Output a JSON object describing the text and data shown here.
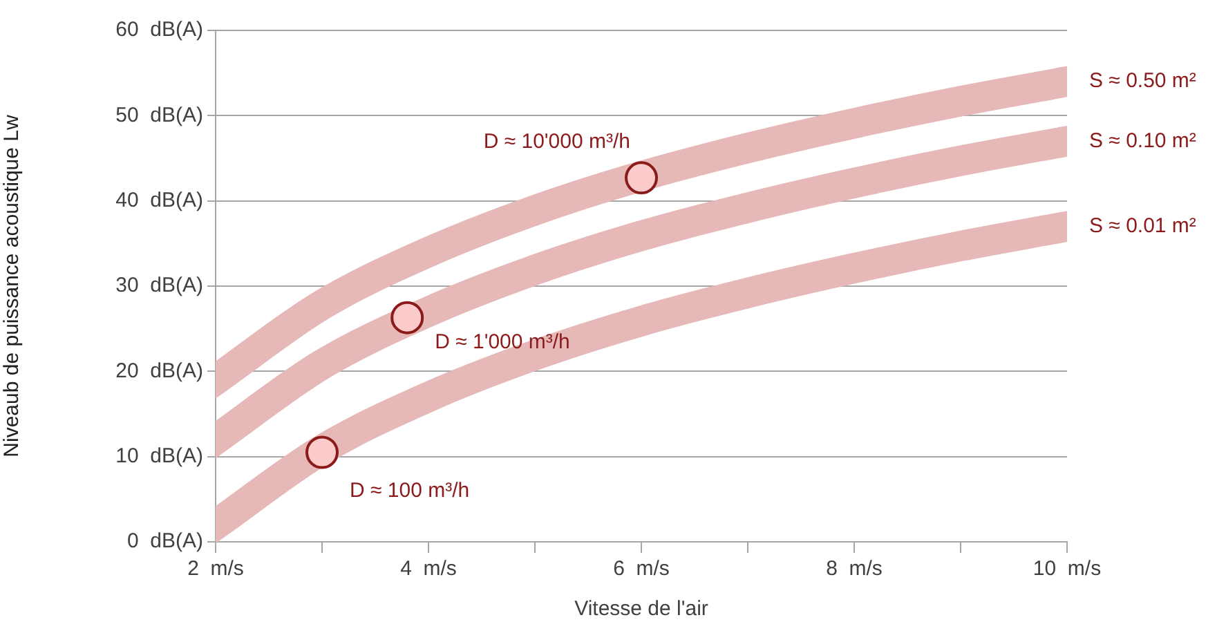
{
  "chart_data": {
    "type": "line",
    "xlabel": "Vitesse de l'air",
    "ylabel": "Niveaub de puissance acoustique Lw",
    "x": [
      2,
      3,
      4,
      5,
      6,
      7,
      8,
      9,
      10
    ],
    "series": [
      {
        "name": "S ≈ 0.50 m²",
        "color": "#e6b8b7",
        "values": [
          19,
          27.8,
          34,
          38.9,
          42.9,
          46.2,
          49.1,
          51.7,
          54
        ]
      },
      {
        "name": "S ≈ 0.10 m²",
        "color": "#e6b8b7",
        "values": [
          12,
          20.8,
          27,
          31.9,
          35.9,
          39.2,
          42.1,
          44.7,
          47
        ]
      },
      {
        "name": "S ≈ 0.01 m²",
        "color": "#e6b8b7",
        "values": [
          2,
          10.8,
          17,
          21.9,
          25.9,
          29.2,
          32.1,
          34.7,
          37
        ]
      },
      {
        "type": "scatter",
        "marker": "circle",
        "color": "#fbcaca",
        "x": [
          3,
          3.8,
          6
        ],
        "values": [
          10.5,
          26.3,
          42.7
        ]
      }
    ],
    "xlim": [
      2,
      10
    ],
    "xticks": [
      {
        "value": 2,
        "label": "2  m/s"
      },
      {
        "value": 3,
        "label": null
      },
      {
        "value": 4,
        "label": "4  m/s"
      },
      {
        "value": 5,
        "label": null
      },
      {
        "value": 6,
        "label": "6  m/s"
      },
      {
        "value": 7,
        "label": null
      },
      {
        "value": 8,
        "label": "8  m/s"
      },
      {
        "value": 9,
        "label": null
      },
      {
        "value": 10,
        "label": "10  m/s"
      }
    ],
    "ylim": [
      0,
      60
    ],
    "yticks": [
      {
        "value": 0,
        "label": "0  dB(A)"
      },
      {
        "value": 10,
        "label": "10  dB(A)"
      },
      {
        "value": 20,
        "label": "20  dB(A)"
      },
      {
        "value": 30,
        "label": "30  dB(A)"
      },
      {
        "value": 40,
        "label": "40  dB(A)"
      },
      {
        "value": 50,
        "label": "50  dB(A)"
      },
      {
        "value": 60,
        "label": "60  dB(A)"
      }
    ],
    "grid": "y",
    "legend": false,
    "line_style": "solid",
    "annotations": [
      {
        "text": "D ≈ 100 m³/h",
        "x": 3,
        "y": 10.5
      },
      {
        "text": "D ≈ 1'000 m³/h",
        "x": 3.8,
        "y": 26.3
      },
      {
        "text": "D ≈ 10'000 m³/h",
        "x": 6,
        "y": 42.7
      }
    ]
  }
}
